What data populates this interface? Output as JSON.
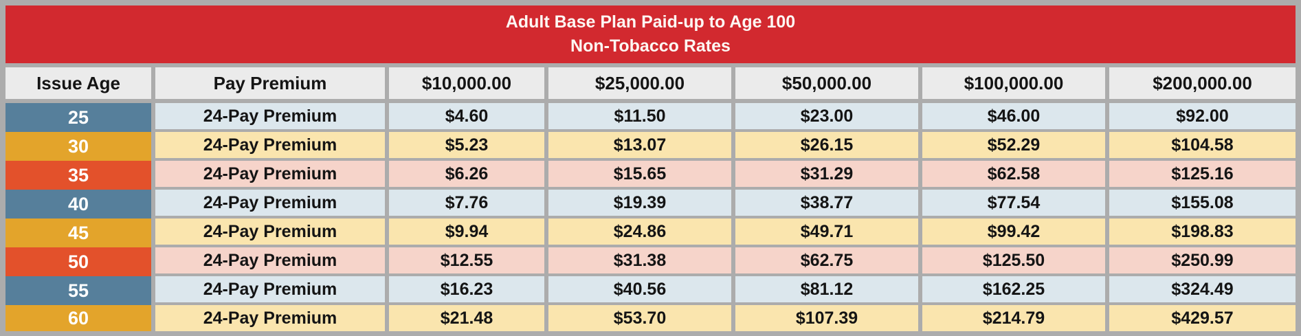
{
  "title": {
    "line1": "Adult Base Plan Paid-up to Age 100",
    "line2": "Non-Tobacco Rates"
  },
  "columns": [
    "Issue Age",
    "Pay Premium",
    "$10,000.00",
    "$25,000.00",
    "$50,000.00",
    "$100,000.00",
    "$200,000.00"
  ],
  "rows": [
    {
      "age": "25",
      "premium_type": "24-Pay Premium",
      "theme": "blue",
      "values": [
        "$4.60",
        "$11.50",
        "$23.00",
        "$46.00",
        "$92.00"
      ]
    },
    {
      "age": "30",
      "premium_type": "24-Pay Premium",
      "theme": "gold",
      "values": [
        "$5.23",
        "$13.07",
        "$26.15",
        "$52.29",
        "$104.58"
      ]
    },
    {
      "age": "35",
      "premium_type": "24-Pay Premium",
      "theme": "red",
      "values": [
        "$6.26",
        "$15.65",
        "$31.29",
        "$62.58",
        "$125.16"
      ]
    },
    {
      "age": "40",
      "premium_type": "24-Pay Premium",
      "theme": "blue",
      "values": [
        "$7.76",
        "$19.39",
        "$38.77",
        "$77.54",
        "$155.08"
      ]
    },
    {
      "age": "45",
      "premium_type": "24-Pay Premium",
      "theme": "gold",
      "values": [
        "$9.94",
        "$24.86",
        "$49.71",
        "$99.42",
        "$198.83"
      ]
    },
    {
      "age": "50",
      "premium_type": "24-Pay Premium",
      "theme": "red",
      "values": [
        "$12.55",
        "$31.38",
        "$62.75",
        "$125.50",
        "$250.99"
      ]
    },
    {
      "age": "55",
      "premium_type": "24-Pay Premium",
      "theme": "blue",
      "values": [
        "$16.23",
        "$40.56",
        "$81.12",
        "$162.25",
        "$324.49"
      ]
    },
    {
      "age": "60",
      "premium_type": "24-Pay Premium",
      "theme": "gold",
      "values": [
        "$21.48",
        "$53.70",
        "$107.39",
        "$214.79",
        "$429.57"
      ]
    }
  ],
  "colors": {
    "banner_red": "#d2292f",
    "border_gray": "#acacac",
    "header_gray": "#ebebeb",
    "age_blue": "#567f9b",
    "age_gold": "#e3a42b",
    "age_red": "#e3512b",
    "row_blue": "#dce7ed",
    "row_gold": "#fae5ae",
    "row_pink": "#f6d4ca"
  },
  "chart_data": {
    "type": "table",
    "title": "Adult Base Plan Paid-up to Age 100 — Non-Tobacco Rates",
    "columns": [
      "Issue Age",
      "Pay Premium",
      "$10,000.00",
      "$25,000.00",
      "$50,000.00",
      "$100,000.00",
      "$200,000.00"
    ],
    "rows": [
      [
        "25",
        "24-Pay Premium",
        4.6,
        11.5,
        23.0,
        46.0,
        92.0
      ],
      [
        "30",
        "24-Pay Premium",
        5.23,
        13.07,
        26.15,
        52.29,
        104.58
      ],
      [
        "35",
        "24-Pay Premium",
        6.26,
        15.65,
        31.29,
        62.58,
        125.16
      ],
      [
        "40",
        "24-Pay Premium",
        7.76,
        19.39,
        38.77,
        77.54,
        155.08
      ],
      [
        "45",
        "24-Pay Premium",
        9.94,
        24.86,
        49.71,
        99.42,
        198.83
      ],
      [
        "50",
        "24-Pay Premium",
        12.55,
        31.38,
        62.75,
        125.5,
        250.99
      ],
      [
        "55",
        "24-Pay Premium",
        16.23,
        40.56,
        81.12,
        162.25,
        324.49
      ],
      [
        "60",
        "24-Pay Premium",
        21.48,
        53.7,
        107.39,
        214.79,
        429.57
      ]
    ]
  }
}
